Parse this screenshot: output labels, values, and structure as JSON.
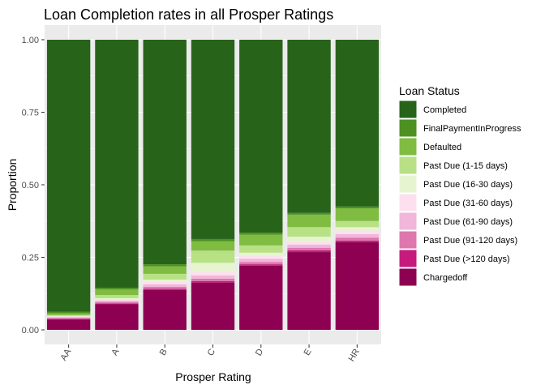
{
  "chart_data": {
    "type": "bar",
    "stacked": true,
    "title": "Loan Completion rates in all Prosper Ratings",
    "xlabel": "Prosper Rating",
    "ylabel": "Proportion",
    "ylim": [
      0,
      1
    ],
    "yticks": [
      "0.00",
      "0.25",
      "0.50",
      "0.75",
      "1.00"
    ],
    "grid": true,
    "legend_position": "right",
    "legend_title": "Loan Status",
    "categories": [
      "AA",
      "A",
      "B",
      "C",
      "D",
      "E",
      "HR"
    ],
    "series": [
      {
        "name": "Chargedoff",
        "color": "#8e0152",
        "values": [
          0.035,
          0.088,
          0.137,
          0.163,
          0.221,
          0.268,
          0.302
        ]
      },
      {
        "name": "Past Due (>120 days)",
        "color": "#c51b7d",
        "values": [
          0.003,
          0.003,
          0.004,
          0.005,
          0.005,
          0.006,
          0.006
        ]
      },
      {
        "name": "Past Due (91-120 days)",
        "color": "#de77ae",
        "values": [
          0.003,
          0.005,
          0.007,
          0.008,
          0.008,
          0.009,
          0.01
        ]
      },
      {
        "name": "Past Due (61-90 days)",
        "color": "#f1b6da",
        "values": [
          0.003,
          0.005,
          0.009,
          0.012,
          0.011,
          0.011,
          0.012
        ]
      },
      {
        "name": "Past Due (31-60 days)",
        "color": "#fde0ef",
        "values": [
          0.002,
          0.004,
          0.008,
          0.012,
          0.01,
          0.011,
          0.012
        ]
      },
      {
        "name": "Past Due (16-30 days)",
        "color": "#e6f5d0",
        "values": [
          0.002,
          0.004,
          0.008,
          0.031,
          0.011,
          0.016,
          0.012
        ]
      },
      {
        "name": "Past Due (1-15 days)",
        "color": "#b8e186",
        "values": [
          0.003,
          0.011,
          0.02,
          0.042,
          0.025,
          0.033,
          0.021
        ]
      },
      {
        "name": "Defaulted",
        "color": "#7fbc41",
        "values": [
          0.006,
          0.019,
          0.026,
          0.032,
          0.037,
          0.043,
          0.044
        ]
      },
      {
        "name": "FinalPaymentInProgress",
        "color": "#4d9221",
        "values": [
          0.005,
          0.006,
          0.007,
          0.008,
          0.007,
          0.006,
          0.006
        ]
      },
      {
        "name": "Completed",
        "color": "#276419",
        "values": [
          0.938,
          0.855,
          0.774,
          0.687,
          0.665,
          0.597,
          0.575
        ]
      }
    ],
    "legend_order": [
      "Completed",
      "FinalPaymentInProgress",
      "Defaulted",
      "Past Due (1-15 days)",
      "Past Due (16-30 days)",
      "Past Due (31-60 days)",
      "Past Due (61-90 days)",
      "Past Due (91-120 days)",
      "Past Due (>120 days)",
      "Chargedoff"
    ]
  }
}
